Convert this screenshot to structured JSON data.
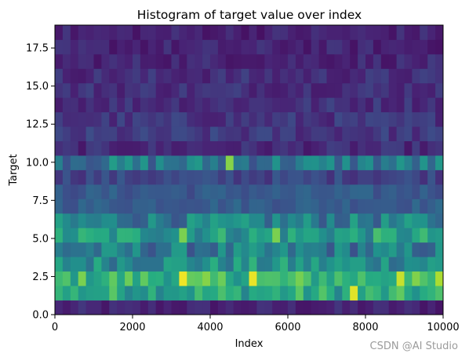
{
  "chart_data": {
    "type": "heatmap",
    "title": "Histogram of target value over index",
    "xlabel": "Index",
    "ylabel": "Target",
    "xlim": [
      0,
      10000
    ],
    "ylim": [
      0,
      19
    ],
    "x_ticks": [
      "0",
      "2000",
      "4000",
      "6000",
      "8000",
      "10000"
    ],
    "y_ticks": [
      "0.0",
      "2.5",
      "5.0",
      "7.5",
      "10.0",
      "12.5",
      "15.0",
      "17.5"
    ],
    "x_bins": 50,
    "y_bins": 20,
    "colormap": "viridis",
    "value_range": [
      0,
      1
    ],
    "row_profile": [
      {
        "y_bin": "0-1",
        "mean": 0.12
      },
      {
        "y_bin": "1-2",
        "mean": 0.6
      },
      {
        "y_bin": "2-3",
        "mean": 0.66
      },
      {
        "y_bin": "3-4",
        "mean": 0.5
      },
      {
        "y_bin": "4-5",
        "mean": 0.4
      },
      {
        "y_bin": "5-6",
        "mean": 0.55
      },
      {
        "y_bin": "6-7",
        "mean": 0.42
      },
      {
        "y_bin": "7-8",
        "mean": 0.3
      },
      {
        "y_bin": "8-9",
        "mean": 0.28
      },
      {
        "y_bin": "9-10",
        "mean": 0.22
      },
      {
        "y_bin": "10-11",
        "mean": 0.4
      },
      {
        "y_bin": "11-12",
        "mean": 0.14
      },
      {
        "y_bin": "12-13",
        "mean": 0.18
      },
      {
        "y_bin": "13-14",
        "mean": 0.17
      },
      {
        "y_bin": "14-15",
        "mean": 0.16
      },
      {
        "y_bin": "15-16",
        "mean": 0.16
      },
      {
        "y_bin": "16-17",
        "mean": 0.15
      },
      {
        "y_bin": "17-18",
        "mean": 0.13
      },
      {
        "y_bin": "18-19",
        "mean": 0.12
      },
      {
        "y_bin": "19-20",
        "mean": 0.12
      }
    ],
    "hot_cells": [
      {
        "x_bin": 33,
        "y_bin": 2,
        "value": 0.98
      },
      {
        "x_bin": 51,
        "y_bin": 2,
        "value": 0.97
      },
      {
        "x_bin": 77,
        "y_bin": 1,
        "value": 0.96
      },
      {
        "x_bin": 89,
        "y_bin": 2,
        "value": 0.92
      },
      {
        "x_bin": 99,
        "y_bin": 2,
        "value": 0.88
      },
      {
        "x_bin": 56,
        "y_bin": 5,
        "value": 0.8
      },
      {
        "x_bin": 33,
        "y_bin": 5,
        "value": 0.8
      },
      {
        "x_bin": 45,
        "y_bin": 10,
        "value": 0.82
      }
    ]
  },
  "watermark": "CSDN @AI Studio"
}
